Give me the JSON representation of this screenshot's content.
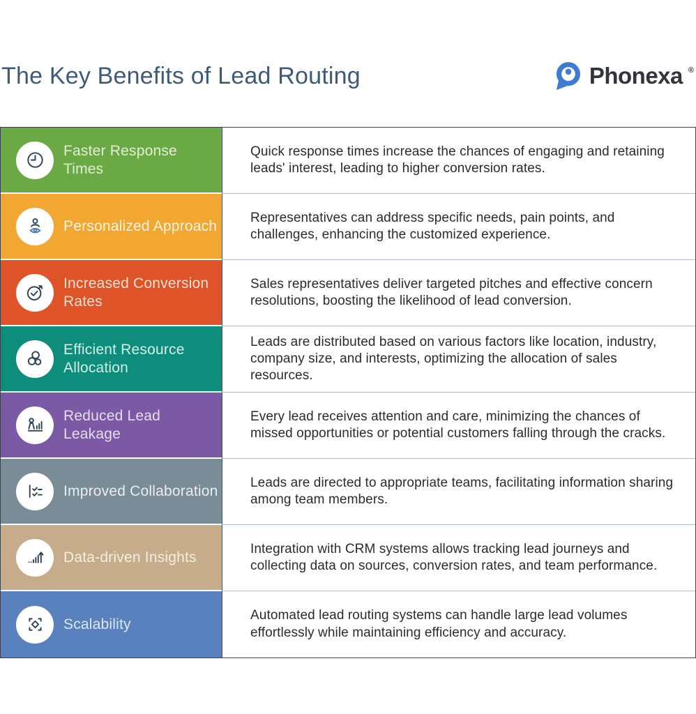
{
  "header": {
    "title": "The Key Benefits of Lead Routing",
    "brand": "Phonexa",
    "registered": "®"
  },
  "colors": {
    "title_text": "#3D5A78",
    "body_text": "#2B2B2B",
    "logo_blue": "#3E7BD2",
    "wordmark_text": "#32363C",
    "icon_stroke": "#2E4157",
    "table_outer_border": "#39434D",
    "row_divider": "#AEBAC5"
  },
  "rows": [
    {
      "icon": "clock-icon",
      "title": "Faster Response Times",
      "description": "Quick response times increase the chances of engaging and retaining leads' interest, leading to higher conversion rates.",
      "bg_color": "#6BA944",
      "title_color": "#E0F0D3"
    },
    {
      "icon": "person-focus-icon",
      "title": "Personalized Approach",
      "description": "Representatives can address specific needs, pain points, and challenges, enhancing the customized experience.",
      "bg_color": "#F2A733",
      "title_color": "#FCF3DB"
    },
    {
      "icon": "conversion-check-icon",
      "title": "Increased Conversion Rates",
      "description": "Sales representatives deliver targeted pitches and effective concern resolutions, boosting the likelihood of lead conversion.",
      "bg_color": "#DE5428",
      "title_color": "#FAE0D4"
    },
    {
      "icon": "resource-circles-icon",
      "title": "Efficient Resource Allocation",
      "description": "Leads are distributed based on various factors like location, industry, company size, and interests, optimizing the allocation of sales resources.",
      "bg_color": "#0E8D7C",
      "title_color": "#D5EFE6"
    },
    {
      "icon": "lead-leakage-icon",
      "title": "Reduced Lead Leakage",
      "description": "Every lead receives attention and care, minimizing the chances of missed opportunities or potential customers falling through the cracks.",
      "bg_color": "#7C59A4",
      "title_color": "#E7DDF1"
    },
    {
      "icon": "collaboration-checklist-icon",
      "title": "Improved Collaboration",
      "description": "Leads are directed to appropriate teams, facilitating information sharing among team members.",
      "bg_color": "#7A8C98",
      "title_color": "#E9EEF1"
    },
    {
      "icon": "insights-chart-icon",
      "title": "Data-driven Insights",
      "description": "Integration with CRM systems allows tracking lead journeys and collecting data on sources, conversion rates, and team performance.",
      "bg_color": "#C6AC8A",
      "title_color": "#F6EEE3"
    },
    {
      "icon": "scalability-icon",
      "title": "Scalability",
      "description": "Automated lead routing systems can handle large lead volumes effortlessly while maintaining efficiency and accuracy.",
      "bg_color": "#5981BE",
      "title_color": "#DFE8F5"
    }
  ]
}
